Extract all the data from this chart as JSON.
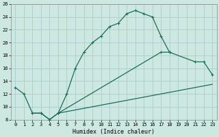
{
  "xlabel": "Humidex (Indice chaleur)",
  "bg_color": "#cce8e0",
  "grid_color": "#aacccc",
  "line_color": "#1a6b5a",
  "xlim": [
    -0.5,
    23.5
  ],
  "ylim": [
    8,
    26
  ],
  "xticks": [
    0,
    1,
    2,
    3,
    4,
    5,
    6,
    7,
    8,
    9,
    10,
    11,
    12,
    13,
    14,
    15,
    16,
    17,
    18,
    19,
    20,
    21,
    22,
    23
  ],
  "yticks": [
    8,
    10,
    12,
    14,
    16,
    18,
    20,
    22,
    24,
    26
  ],
  "line1_x": [
    0,
    1,
    2,
    3,
    4,
    5,
    6,
    7,
    8,
    9,
    10,
    11,
    12,
    13,
    14,
    15,
    16,
    17,
    18
  ],
  "line1_y": [
    13,
    12,
    9,
    9,
    8,
    9,
    12,
    16,
    18.5,
    20,
    21,
    22.5,
    23,
    24.5,
    25,
    24.5,
    24,
    21,
    18.5
  ],
  "line2_x": [
    2,
    3,
    4,
    5,
    17,
    18,
    21,
    22,
    23
  ],
  "line2_y": [
    9,
    9,
    8,
    9,
    18.5,
    18.5,
    17,
    17,
    15
  ],
  "line3_x": [
    5,
    23
  ],
  "line3_y": [
    9,
    13.5
  ]
}
